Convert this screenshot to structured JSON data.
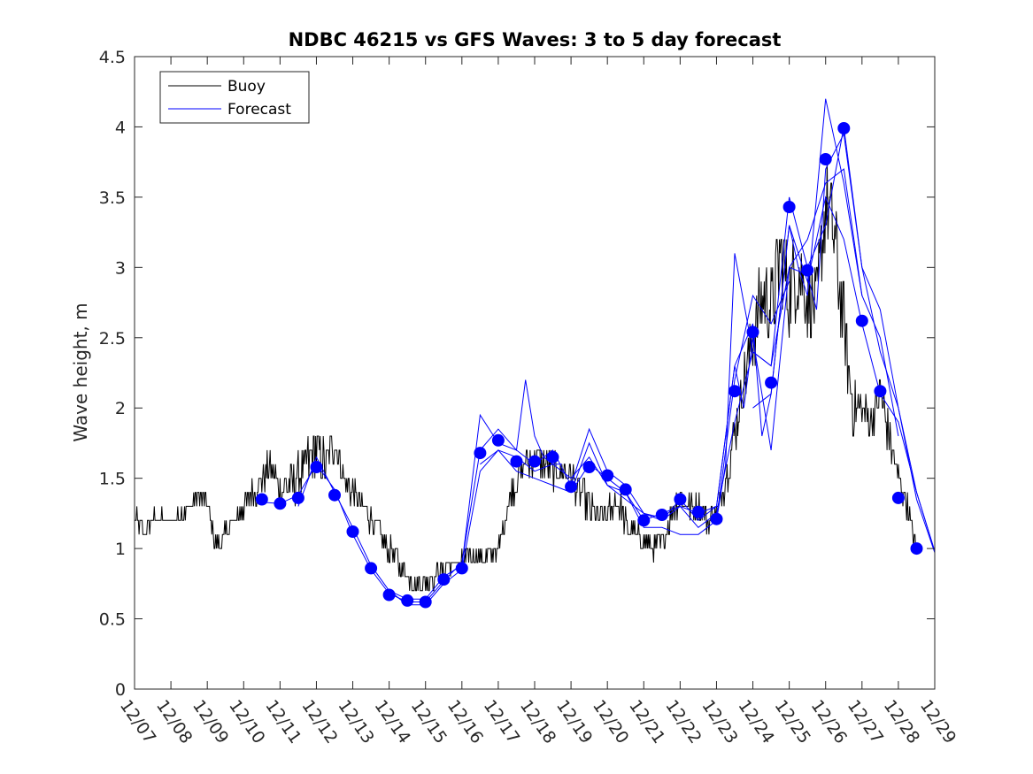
{
  "chart_data": {
    "type": "line",
    "title": "NDBC 46215 vs GFS Waves: 3 to 5 day forecast",
    "xlabel": "",
    "ylabel": "Wave height, m",
    "ylim": [
      0,
      4.5
    ],
    "yticks": [
      "0",
      "0.5",
      "1",
      "1.5",
      "2",
      "2.5",
      "3",
      "3.5",
      "4",
      "4.5"
    ],
    "xlim_days": [
      0,
      22
    ],
    "xtick_labels": [
      "12/07",
      "12/08",
      "12/09",
      "12/10",
      "12/11",
      "12/12",
      "12/13",
      "12/14",
      "12/15",
      "12/16",
      "12/17",
      "12/18",
      "12/19",
      "12/20",
      "12/21",
      "12/22",
      "12/23",
      "12/24",
      "12/25",
      "12/26",
      "12/27",
      "12/28",
      "12/29"
    ],
    "legend": {
      "position": "top-left",
      "entries": [
        {
          "label": "Buoy",
          "color": "#000000"
        },
        {
          "label": "Forecast",
          "color": "#0000ff"
        }
      ]
    },
    "colors": {
      "buoy": "#000000",
      "forecast": "#0000ff",
      "axes": "#262626"
    },
    "series": [
      {
        "name": "Buoy",
        "color": "#000000",
        "x": [
          0.0,
          0.25,
          0.5,
          1.0,
          1.5,
          1.75,
          2.0,
          2.25,
          2.5,
          2.75,
          3.0,
          3.25,
          3.5,
          3.75,
          4.0,
          4.5,
          5.0,
          5.25,
          5.5,
          5.75,
          6.0,
          6.25,
          6.5,
          7.0,
          7.25,
          7.5,
          7.75,
          8.0,
          8.25,
          8.5,
          8.75,
          9.0,
          9.25,
          9.5,
          9.75,
          10.0,
          10.25,
          10.5,
          10.75,
          11.0,
          11.25,
          11.5,
          11.75,
          12.0,
          12.5,
          12.75,
          13.0,
          13.25,
          13.5,
          13.75,
          14.0,
          14.25,
          14.5,
          14.75,
          15.0,
          15.25,
          15.5,
          15.75,
          16.0,
          16.25,
          16.5,
          16.75,
          17.0,
          17.25,
          17.5,
          17.75,
          18.0,
          18.25,
          18.5,
          18.75,
          19.0,
          19.25,
          19.5,
          19.75,
          20.0,
          20.25,
          20.5,
          20.75,
          21.0,
          21.25,
          21.5
        ],
        "values": [
          1.2,
          1.1,
          1.2,
          1.2,
          1.3,
          1.4,
          1.3,
          1.0,
          1.1,
          1.2,
          1.3,
          1.4,
          1.5,
          1.6,
          1.4,
          1.5,
          1.7,
          1.6,
          1.8,
          1.5,
          1.4,
          1.3,
          1.2,
          1.0,
          0.9,
          0.8,
          0.75,
          0.75,
          0.8,
          0.85,
          0.9,
          0.9,
          0.95,
          0.95,
          0.95,
          1.0,
          1.3,
          1.5,
          1.6,
          1.65,
          1.6,
          1.55,
          1.55,
          1.5,
          1.3,
          1.2,
          1.25,
          1.35,
          1.2,
          1.1,
          1.05,
          1.0,
          1.05,
          1.25,
          1.35,
          1.3,
          1.3,
          1.2,
          1.25,
          1.5,
          1.8,
          2.2,
          2.5,
          2.8,
          2.7,
          3.1,
          2.8,
          3.0,
          2.8,
          2.7,
          3.5,
          3.2,
          2.6,
          2.0,
          2.0,
          1.9,
          2.1,
          1.8,
          1.5,
          1.3,
          1.0
        ],
        "noise": [
          0.08,
          0.08,
          0.06,
          0.06,
          0.06,
          0.06,
          0.06,
          0.06,
          0.06,
          0.06,
          0.1,
          0.12,
          0.14,
          0.14,
          0.16,
          0.16,
          0.2,
          0.16,
          0.18,
          0.12,
          0.1,
          0.1,
          0.08,
          0.08,
          0.08,
          0.06,
          0.05,
          0.06,
          0.06,
          0.06,
          0.06,
          0.06,
          0.06,
          0.06,
          0.06,
          0.06,
          0.1,
          0.12,
          0.12,
          0.12,
          0.12,
          0.12,
          0.12,
          0.12,
          0.12,
          0.1,
          0.1,
          0.1,
          0.1,
          0.08,
          0.08,
          0.08,
          0.08,
          0.1,
          0.1,
          0.1,
          0.1,
          0.08,
          0.08,
          0.12,
          0.15,
          0.2,
          0.25,
          0.3,
          0.3,
          0.35,
          0.3,
          0.35,
          0.3,
          0.3,
          0.35,
          0.35,
          0.3,
          0.2,
          0.15,
          0.12,
          0.15,
          0.15,
          0.1,
          0.1,
          0.05
        ]
      },
      {
        "name": "Forecast",
        "color": "#0000ff",
        "dot_x": [
          3.5,
          4.0,
          4.5,
          5.0,
          5.5,
          6.0,
          6.5,
          7.0,
          7.5,
          8.0,
          8.5,
          9.0,
          9.5,
          10.0,
          10.5,
          11.0,
          11.5,
          12.0,
          12.5,
          13.0,
          13.5,
          14.0,
          14.5,
          15.0,
          15.5,
          16.0,
          16.5,
          17.0,
          17.5,
          18.0,
          18.5,
          19.0,
          19.5,
          20.0,
          20.5,
          21.0,
          21.5
        ],
        "dot_values": [
          1.35,
          1.32,
          1.36,
          1.58,
          1.38,
          1.12,
          0.86,
          0.67,
          0.63,
          0.62,
          0.78,
          0.86,
          1.68,
          1.77,
          1.62,
          1.62,
          1.65,
          1.44,
          1.58,
          1.52,
          1.42,
          1.2,
          1.24,
          1.35,
          1.26,
          1.21,
          2.12,
          2.54,
          2.18,
          3.43,
          2.98,
          3.77,
          3.99,
          2.62,
          2.12,
          1.36,
          1.0
        ],
        "lines": [
          {
            "x": [
              3.5,
              4.0,
              4.5,
              5.0,
              5.5,
              6.0,
              6.5,
              7.0,
              7.5,
              8.0,
              8.5,
              9.0,
              9.5,
              10.0,
              10.5,
              10.75,
              11.0,
              11.25,
              11.5,
              11.75
            ],
            "values": [
              1.33,
              1.32,
              1.38,
              1.6,
              1.42,
              1.1,
              0.85,
              0.68,
              0.62,
              0.62,
              0.77,
              0.9,
              1.7,
              1.85,
              1.7,
              2.2,
              1.8,
              1.65,
              1.6,
              1.6
            ]
          },
          {
            "x": [
              4.5,
              5.0,
              5.5,
              6.0,
              6.5,
              7.0,
              7.5,
              8.0,
              8.5,
              9.0,
              9.5,
              10.0,
              10.5,
              11.0,
              11.5,
              12.0,
              12.5,
              13.0,
              13.5,
              14.0,
              14.5
            ],
            "values": [
              1.3,
              1.65,
              1.4,
              1.15,
              0.88,
              0.7,
              0.64,
              0.64,
              0.8,
              0.88,
              1.95,
              1.75,
              1.7,
              1.6,
              1.7,
              1.45,
              1.85,
              1.55,
              1.45,
              1.25,
              1.22
            ]
          },
          {
            "x": [
              7.0,
              7.5,
              8.0,
              8.5,
              9.0,
              9.5,
              10.0,
              10.5,
              11.0,
              11.5,
              12.0,
              12.5,
              13.0,
              13.5,
              14.0,
              14.5,
              15.0,
              15.5,
              16.0,
              16.5,
              17.0,
              17.5,
              18.0
            ],
            "values": [
              0.7,
              0.6,
              0.6,
              0.75,
              0.85,
              1.55,
              1.7,
              1.55,
              1.5,
              1.45,
              1.4,
              1.75,
              1.45,
              1.4,
              1.15,
              1.15,
              1.1,
              1.1,
              1.2,
              2.2,
              2.8,
              2.6,
              2.9
            ]
          },
          {
            "x": [
              9.5,
              10.0,
              10.5,
              11.0,
              11.5,
              12.0,
              12.5,
              13.0,
              13.5,
              14.0,
              14.5,
              15.0,
              15.5,
              16.0,
              16.5,
              17.0,
              17.5,
              18.0,
              18.5,
              19.0,
              19.5,
              20.0
            ],
            "values": [
              1.6,
              1.7,
              1.65,
              1.55,
              1.6,
              1.5,
              1.65,
              1.45,
              1.35,
              1.25,
              1.2,
              1.3,
              1.15,
              1.25,
              1.9,
              2.4,
              2.3,
              3.0,
              3.2,
              3.6,
              3.7,
              2.8
            ]
          },
          {
            "x": [
              12.0,
              12.5,
              13.0,
              13.5,
              14.0,
              14.5,
              15.0,
              15.5,
              16.0,
              16.5,
              17.0,
              17.25,
              17.5,
              18.0,
              18.25,
              18.5,
              19.0,
              19.25,
              19.5,
              20.0,
              20.5,
              21.0
            ],
            "values": [
              1.4,
              1.6,
              1.5,
              1.4,
              1.2,
              1.25,
              1.3,
              1.25,
              1.3,
              2.3,
              2.6,
              1.8,
              2.1,
              3.3,
              3.0,
              2.8,
              4.2,
              3.9,
              3.6,
              2.8,
              2.5,
              1.8
            ]
          },
          {
            "x": [
              14.5,
              15.0,
              15.5,
              16.0,
              16.5,
              16.75,
              17.0,
              17.5,
              18.0,
              18.5,
              18.75,
              19.0,
              19.5,
              20.0,
              20.5,
              21.0,
              21.5,
              22.0
            ],
            "values": [
              1.2,
              1.35,
              1.2,
              1.3,
              2.3,
              2.0,
              2.5,
              1.7,
              3.0,
              2.95,
              2.7,
              3.7,
              3.95,
              3.0,
              2.7,
              2.0,
              1.4,
              0.98
            ]
          },
          {
            "x": [
              16.0,
              16.25,
              16.5,
              17.0,
              17.5,
              18.0,
              18.5,
              19.0,
              19.5,
              20.0,
              20.5,
              21.0,
              21.5,
              22.0
            ],
            "values": [
              1.2,
              1.6,
              3.1,
              2.4,
              2.3,
              3.5,
              3.0,
              3.3,
              4.0,
              3.0,
              2.4,
              2.0,
              1.35,
              0.97
            ]
          },
          {
            "x": [
              17.0,
              17.5,
              18.0,
              18.5,
              19.0,
              19.5,
              20.0,
              20.5,
              21.0,
              21.5,
              22.0
            ],
            "values": [
              2.0,
              2.1,
              3.3,
              2.9,
              3.5,
              3.2,
              2.6,
              2.1,
              1.9,
              1.4,
              0.98
            ]
          }
        ]
      }
    ]
  }
}
